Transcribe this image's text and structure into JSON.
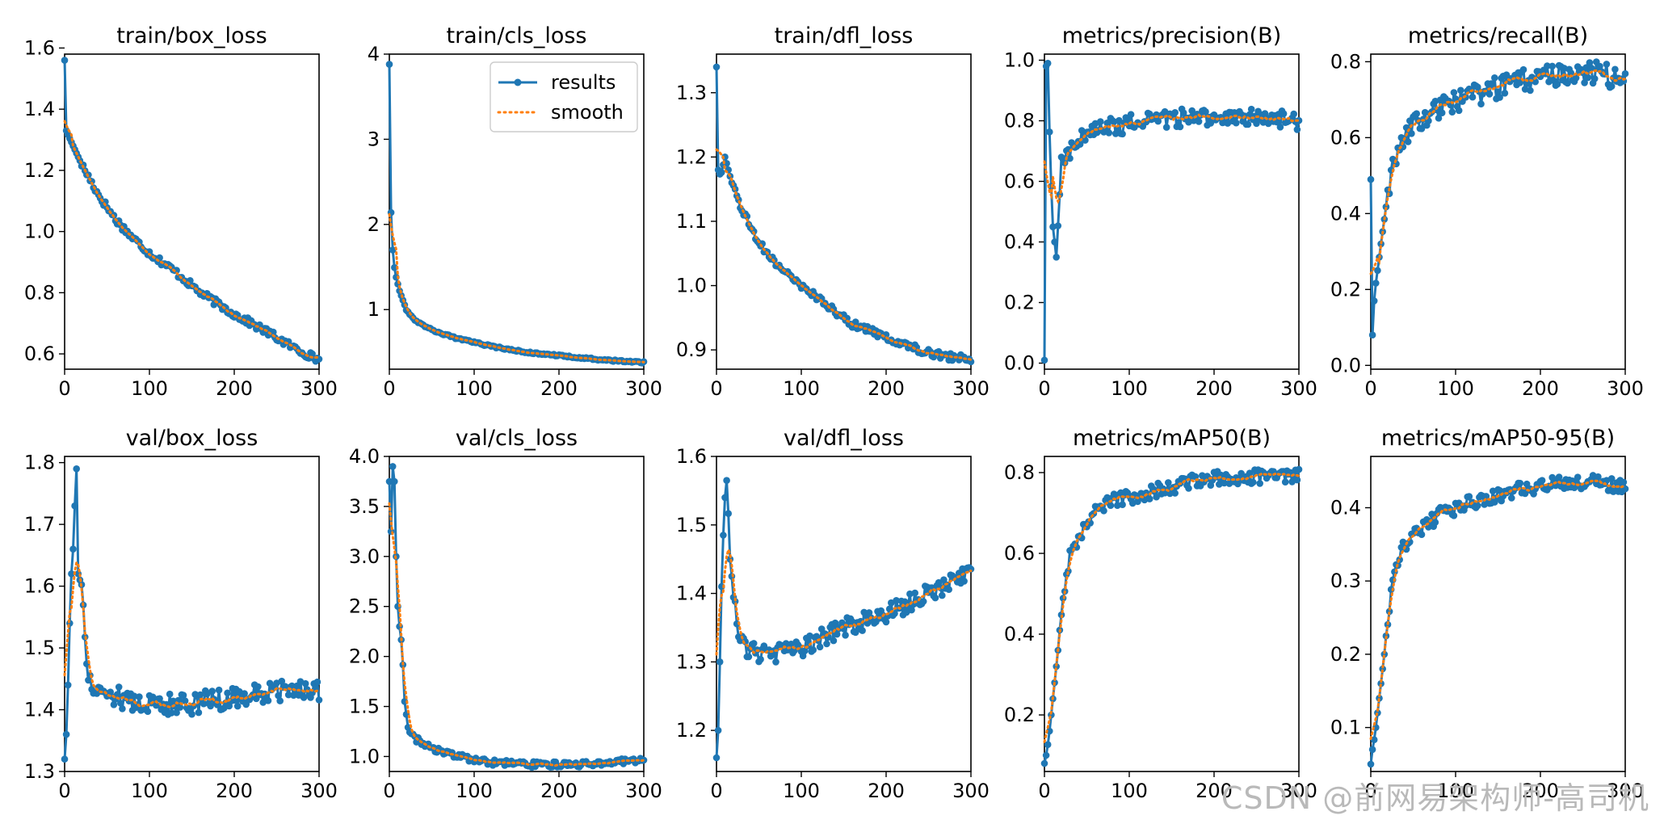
{
  "colors": {
    "results": "#1f77b4",
    "smooth": "#ff7f0e",
    "axis": "#000000",
    "background": "#ffffff"
  },
  "legend": {
    "results_label": "results",
    "smooth_label": "smooth",
    "placement": "upper-right",
    "panel": 1
  },
  "watermark": "CSDN @前网易架构师-高司机",
  "chart_data": [
    {
      "type": "line",
      "title": "train/box_loss",
      "xlim": [
        0,
        300
      ],
      "ylim": [
        0.55,
        1.58
      ],
      "xticks": [
        "0",
        "100",
        "200",
        "300"
      ],
      "yticks": [
        "0.6",
        "0.8",
        "1.0",
        "1.2",
        "1.4",
        "1.6"
      ],
      "anchors": [
        [
          0,
          1.56
        ],
        [
          1,
          1.42
        ],
        [
          2,
          1.33
        ],
        [
          5,
          1.31
        ],
        [
          10,
          1.28
        ],
        [
          20,
          1.22
        ],
        [
          40,
          1.12
        ],
        [
          60,
          1.04
        ],
        [
          80,
          0.98
        ],
        [
          100,
          0.93
        ],
        [
          130,
          0.87
        ],
        [
          160,
          0.8
        ],
        [
          200,
          0.73
        ],
        [
          240,
          0.67
        ],
        [
          270,
          0.62
        ],
        [
          300,
          0.58
        ]
      ],
      "noise": 0.012
    },
    {
      "type": "line",
      "title": "train/cls_loss",
      "xlim": [
        0,
        300
      ],
      "ylim": [
        0.3,
        4.0
      ],
      "xticks": [
        "0",
        "100",
        "200",
        "300"
      ],
      "yticks": [
        "1",
        "2",
        "3",
        "4"
      ],
      "anchors": [
        [
          0,
          3.88
        ],
        [
          1,
          2.43
        ],
        [
          3,
          1.85
        ],
        [
          5,
          1.55
        ],
        [
          8,
          1.38
        ],
        [
          12,
          1.22
        ],
        [
          20,
          1.0
        ],
        [
          30,
          0.88
        ],
        [
          50,
          0.76
        ],
        [
          80,
          0.66
        ],
        [
          120,
          0.57
        ],
        [
          160,
          0.5
        ],
        [
          200,
          0.46
        ],
        [
          250,
          0.41
        ],
        [
          300,
          0.38
        ]
      ],
      "noise": 0.01
    },
    {
      "type": "line",
      "title": "train/dfl_loss",
      "xlim": [
        0,
        300
      ],
      "ylim": [
        0.87,
        1.36
      ],
      "xticks": [
        "0",
        "100",
        "200",
        "300"
      ],
      "yticks": [
        "0.9",
        "1.0",
        "1.1",
        "1.2",
        "1.3"
      ],
      "anchors": [
        [
          0,
          1.34
        ],
        [
          2,
          1.18
        ],
        [
          5,
          1.17
        ],
        [
          10,
          1.2
        ],
        [
          20,
          1.15
        ],
        [
          40,
          1.09
        ],
        [
          60,
          1.05
        ],
        [
          80,
          1.02
        ],
        [
          100,
          1.0
        ],
        [
          130,
          0.97
        ],
        [
          160,
          0.94
        ],
        [
          200,
          0.92
        ],
        [
          240,
          0.9
        ],
        [
          270,
          0.89
        ],
        [
          300,
          0.885
        ]
      ],
      "noise": 0.006
    },
    {
      "type": "line",
      "title": "metrics/precision(B)",
      "xlim": [
        0,
        300
      ],
      "ylim": [
        -0.02,
        1.02
      ],
      "xticks": [
        "0",
        "100",
        "200",
        "300"
      ],
      "yticks": [
        "0.0",
        "0.2",
        "0.4",
        "0.6",
        "0.8",
        "1.0"
      ],
      "anchors": [
        [
          0,
          0.01
        ],
        [
          2,
          0.98
        ],
        [
          4,
          0.99
        ],
        [
          7,
          0.65
        ],
        [
          10,
          0.45
        ],
        [
          14,
          0.35
        ],
        [
          20,
          0.66
        ],
        [
          30,
          0.7
        ],
        [
          50,
          0.76
        ],
        [
          80,
          0.78
        ],
        [
          120,
          0.8
        ],
        [
          160,
          0.81
        ],
        [
          200,
          0.81
        ],
        [
          240,
          0.81
        ],
        [
          270,
          0.81
        ],
        [
          300,
          0.8
        ]
      ],
      "noise": 0.03
    },
    {
      "type": "line",
      "title": "metrics/recall(B)",
      "xlim": [
        0,
        300
      ],
      "ylim": [
        -0.01,
        0.82
      ],
      "xticks": [
        "0",
        "100",
        "200",
        "300"
      ],
      "yticks": [
        "0.0",
        "0.2",
        "0.4",
        "0.6",
        "0.8"
      ],
      "anchors": [
        [
          0,
          0.49
        ],
        [
          1,
          0.02
        ],
        [
          3,
          0.14
        ],
        [
          5,
          0.2
        ],
        [
          8,
          0.25
        ],
        [
          12,
          0.32
        ],
        [
          20,
          0.45
        ],
        [
          30,
          0.56
        ],
        [
          50,
          0.63
        ],
        [
          80,
          0.68
        ],
        [
          120,
          0.71
        ],
        [
          160,
          0.74
        ],
        [
          200,
          0.76
        ],
        [
          240,
          0.77
        ],
        [
          270,
          0.77
        ],
        [
          300,
          0.75
        ]
      ],
      "noise": 0.03
    },
    {
      "type": "line",
      "title": "val/box_loss",
      "xlim": [
        0,
        300
      ],
      "ylim": [
        1.3,
        1.81
      ],
      "xticks": [
        "0",
        "100",
        "200",
        "300"
      ],
      "yticks": [
        "1.3",
        "1.4",
        "1.5",
        "1.6",
        "1.7",
        "1.8"
      ],
      "anchors": [
        [
          0,
          1.32
        ],
        [
          1,
          1.43
        ],
        [
          2,
          1.36
        ],
        [
          4,
          1.44
        ],
        [
          6,
          1.54
        ],
        [
          8,
          1.62
        ],
        [
          10,
          1.66
        ],
        [
          12,
          1.73
        ],
        [
          14,
          1.79
        ],
        [
          16,
          1.62
        ],
        [
          20,
          1.6
        ],
        [
          25,
          1.5
        ],
        [
          30,
          1.44
        ],
        [
          50,
          1.43
        ],
        [
          80,
          1.41
        ],
        [
          110,
          1.41
        ],
        [
          150,
          1.41
        ],
        [
          200,
          1.42
        ],
        [
          250,
          1.43
        ],
        [
          300,
          1.43
        ]
      ],
      "noise": 0.018
    },
    {
      "type": "line",
      "title": "val/cls_loss",
      "xlim": [
        0,
        300
      ],
      "ylim": [
        0.85,
        4.0
      ],
      "xticks": [
        "0",
        "100",
        "200",
        "300"
      ],
      "yticks": [
        "1.0",
        "1.5",
        "2.0",
        "2.5",
        "3.0",
        "3.5",
        "4.0"
      ],
      "anchors": [
        [
          0,
          3.75
        ],
        [
          2,
          3.25
        ],
        [
          4,
          3.9
        ],
        [
          6,
          3.75
        ],
        [
          8,
          3.0
        ],
        [
          10,
          2.5
        ],
        [
          12,
          2.3
        ],
        [
          15,
          2.1
        ],
        [
          18,
          1.55
        ],
        [
          22,
          1.3
        ],
        [
          30,
          1.18
        ],
        [
          50,
          1.08
        ],
        [
          80,
          1.0
        ],
        [
          120,
          0.94
        ],
        [
          160,
          0.92
        ],
        [
          200,
          0.92
        ],
        [
          250,
          0.93
        ],
        [
          300,
          0.97
        ]
      ],
      "noise": 0.03
    },
    {
      "type": "line",
      "title": "val/dfl_loss",
      "xlim": [
        0,
        300
      ],
      "ylim": [
        1.14,
        1.6
      ],
      "xticks": [
        "0",
        "100",
        "200",
        "300"
      ],
      "yticks": [
        "1.2",
        "1.3",
        "1.4",
        "1.5",
        "1.6"
      ],
      "anchors": [
        [
          0,
          1.16
        ],
        [
          1,
          1.15
        ],
        [
          3,
          1.25
        ],
        [
          5,
          1.35
        ],
        [
          7,
          1.47
        ],
        [
          9,
          1.5
        ],
        [
          11,
          1.58
        ],
        [
          13,
          1.55
        ],
        [
          16,
          1.45
        ],
        [
          20,
          1.4
        ],
        [
          25,
          1.34
        ],
        [
          35,
          1.32
        ],
        [
          60,
          1.31
        ],
        [
          100,
          1.32
        ],
        [
          150,
          1.35
        ],
        [
          200,
          1.37
        ],
        [
          250,
          1.4
        ],
        [
          300,
          1.43
        ]
      ],
      "noise": 0.014
    },
    {
      "type": "line",
      "title": "metrics/mAP50(B)",
      "xlim": [
        0,
        300
      ],
      "ylim": [
        0.06,
        0.84
      ],
      "xticks": [
        "0",
        "100",
        "200",
        "300"
      ],
      "yticks": [
        "0.2",
        "0.4",
        "0.6",
        "0.8"
      ],
      "anchors": [
        [
          0,
          0.08
        ],
        [
          2,
          0.1
        ],
        [
          5,
          0.14
        ],
        [
          8,
          0.2
        ],
        [
          12,
          0.28
        ],
        [
          16,
          0.36
        ],
        [
          20,
          0.46
        ],
        [
          25,
          0.53
        ],
        [
          30,
          0.6
        ],
        [
          40,
          0.64
        ],
        [
          60,
          0.7
        ],
        [
          80,
          0.73
        ],
        [
          100,
          0.74
        ],
        [
          140,
          0.76
        ],
        [
          180,
          0.78
        ],
        [
          220,
          0.79
        ],
        [
          260,
          0.79
        ],
        [
          300,
          0.79
        ]
      ],
      "noise": 0.018
    },
    {
      "type": "line",
      "title": "metrics/mAP50-95(B)",
      "xlim": [
        0,
        300
      ],
      "ylim": [
        0.04,
        0.47
      ],
      "xticks": [
        "0",
        "100",
        "200",
        "300"
      ],
      "yticks": [
        "0.1",
        "0.2",
        "0.3",
        "0.4"
      ],
      "anchors": [
        [
          0,
          0.05
        ],
        [
          2,
          0.07
        ],
        [
          5,
          0.09
        ],
        [
          8,
          0.12
        ],
        [
          12,
          0.16
        ],
        [
          16,
          0.2
        ],
        [
          20,
          0.25
        ],
        [
          25,
          0.29
        ],
        [
          30,
          0.32
        ],
        [
          40,
          0.35
        ],
        [
          60,
          0.37
        ],
        [
          80,
          0.39
        ],
        [
          100,
          0.4
        ],
        [
          140,
          0.415
        ],
        [
          180,
          0.425
        ],
        [
          220,
          0.435
        ],
        [
          260,
          0.435
        ],
        [
          300,
          0.43
        ]
      ],
      "noise": 0.01
    }
  ]
}
